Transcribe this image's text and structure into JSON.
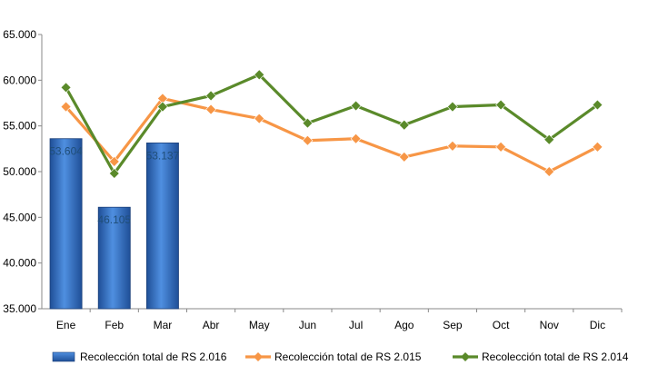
{
  "chart_data": {
    "type": "bar+line",
    "categories": [
      "Ene",
      "Feb",
      "Mar",
      "Abr",
      "May",
      "Jun",
      "Jul",
      "Ago",
      "Sep",
      "Oct",
      "Nov",
      "Dic"
    ],
    "ylim": [
      35000,
      65000
    ],
    "y_ticks": [
      35000,
      40000,
      45000,
      50000,
      55000,
      60000,
      65000
    ],
    "y_tick_labels": [
      "35.000",
      "40.000",
      "45.000",
      "50.000",
      "55.000",
      "60.000",
      "65.000"
    ],
    "grid": false,
    "legend_position": "bottom",
    "series": [
      {
        "name": "Recolección total de RS 2.016",
        "kind": "bar",
        "color": "#2e75c7",
        "values": [
          53604,
          46105,
          53137,
          null,
          null,
          null,
          null,
          null,
          null,
          null,
          null,
          null
        ],
        "data_labels": [
          "53.604",
          "46.105",
          "53.137"
        ]
      },
      {
        "name": "Recolección total de RS 2.015",
        "kind": "line",
        "color": "#f79646",
        "marker": "diamond",
        "values": [
          57100,
          51100,
          58000,
          56800,
          55800,
          53400,
          53600,
          51600,
          52800,
          52700,
          50000,
          52700
        ]
      },
      {
        "name": "Recolección total de RS 2.014",
        "kind": "line",
        "color": "#5a8a2a",
        "marker": "diamond",
        "values": [
          59200,
          49800,
          57100,
          58300,
          60600,
          55300,
          57200,
          55100,
          57100,
          57300,
          53500,
          57300
        ]
      }
    ]
  }
}
